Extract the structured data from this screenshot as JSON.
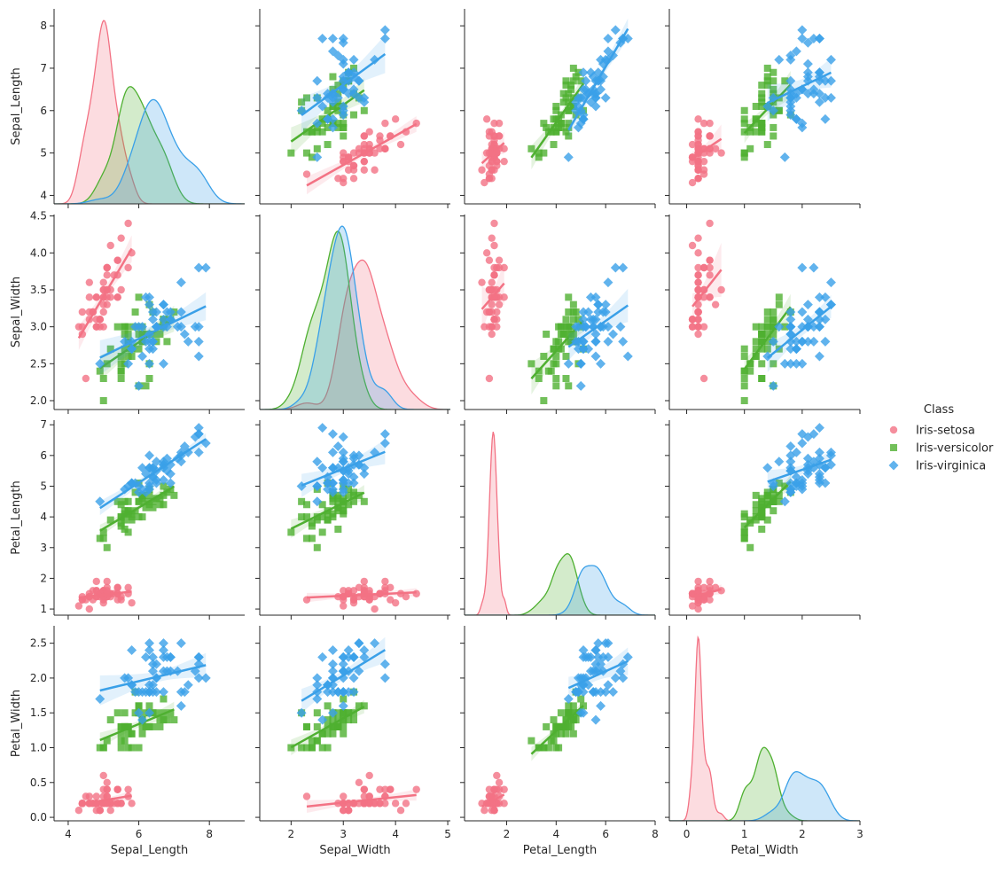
{
  "chart_data": {
    "type": "pairplot",
    "variables": [
      "Sepal_Length",
      "Sepal_Width",
      "Petal_Length",
      "Petal_Width"
    ],
    "axis_labels": {
      "x": [
        "Sepal_Length",
        "Sepal_Width",
        "Petal_Length",
        "Petal_Width"
      ],
      "y": [
        "Sepal_Length",
        "Sepal_Width",
        "Petal_Length",
        "Petal_Width"
      ]
    },
    "ranges": [
      [
        3.8,
        8.4
      ],
      [
        1.88,
        4.52
      ],
      [
        0.8,
        7.15
      ],
      [
        -0.05,
        2.75
      ]
    ],
    "x_ranges": [
      [
        3.6,
        9.0
      ],
      [
        1.4,
        5.05
      ],
      [
        0.3,
        8.0
      ],
      [
        -0.3,
        3.0
      ]
    ],
    "ticks": {
      "Sepal_Length_y": [
        4,
        5,
        6,
        7,
        8
      ],
      "Sepal_Width_y": [
        2.0,
        2.5,
        3.0,
        3.5,
        4.0,
        4.5
      ],
      "Petal_Length_y": [
        1,
        2,
        3,
        4,
        5,
        6,
        7
      ],
      "Petal_Width_y": [
        0.0,
        0.5,
        1.0,
        1.5,
        2.0,
        2.5
      ],
      "Sepal_Length_x": [
        4,
        6,
        8
      ],
      "Sepal_Width_x": [
        2,
        3,
        4,
        5
      ],
      "Petal_Length_x": [
        2,
        4,
        6,
        8
      ],
      "Petal_Width_x": [
        0,
        1,
        2,
        3
      ]
    },
    "tick_labels": {
      "Sepal_Length_y": [
        "4",
        "5",
        "6",
        "7",
        "8"
      ],
      "Sepal_Width_y": [
        "2.0",
        "2.5",
        "3.0",
        "3.5",
        "4.0",
        "4.5"
      ],
      "Petal_Length_y": [
        "1",
        "2",
        "3",
        "4",
        "5",
        "6",
        "7"
      ],
      "Petal_Width_y": [
        "0.0",
        "0.5",
        "1.0",
        "1.5",
        "2.0",
        "2.5"
      ],
      "Sepal_Length_x": [
        "4",
        "6",
        "8"
      ],
      "Sepal_Width_x": [
        "2",
        "3",
        "4",
        "5"
      ],
      "Petal_Length_x": [
        "2",
        "4",
        "6",
        "8"
      ],
      "Petal_Width_x": [
        "0",
        "1",
        "2",
        "3"
      ]
    },
    "legend": {
      "title": "Class",
      "position": "right",
      "entries": [
        {
          "label": "Iris-setosa",
          "color": "#f37284",
          "marker": "circle"
        },
        {
          "label": "Iris-versicolor",
          "color": "#4fb031",
          "marker": "square"
        },
        {
          "label": "Iris-virginica",
          "color": "#3aa0e8",
          "marker": "diamond"
        }
      ]
    },
    "series": [
      {
        "name": "Iris-setosa",
        "color": "#f37284",
        "marker": "circle",
        "points": [
          [
            5.1,
            3.5,
            1.4,
            0.2
          ],
          [
            4.9,
            3.0,
            1.4,
            0.2
          ],
          [
            4.7,
            3.2,
            1.3,
            0.2
          ],
          [
            4.6,
            3.1,
            1.5,
            0.2
          ],
          [
            5.0,
            3.6,
            1.4,
            0.2
          ],
          [
            5.4,
            3.9,
            1.7,
            0.4
          ],
          [
            4.6,
            3.4,
            1.4,
            0.3
          ],
          [
            5.0,
            3.4,
            1.5,
            0.2
          ],
          [
            4.4,
            2.9,
            1.4,
            0.2
          ],
          [
            4.9,
            3.1,
            1.5,
            0.1
          ],
          [
            5.4,
            3.7,
            1.5,
            0.2
          ],
          [
            4.8,
            3.4,
            1.6,
            0.2
          ],
          [
            4.8,
            3.0,
            1.4,
            0.1
          ],
          [
            4.3,
            3.0,
            1.1,
            0.1
          ],
          [
            5.8,
            4.0,
            1.2,
            0.2
          ],
          [
            5.7,
            4.4,
            1.5,
            0.4
          ],
          [
            5.4,
            3.9,
            1.3,
            0.4
          ],
          [
            5.1,
            3.5,
            1.4,
            0.3
          ],
          [
            5.7,
            3.8,
            1.7,
            0.3
          ],
          [
            5.1,
            3.8,
            1.5,
            0.3
          ],
          [
            5.4,
            3.4,
            1.7,
            0.2
          ],
          [
            5.1,
            3.7,
            1.5,
            0.4
          ],
          [
            4.6,
            3.6,
            1.0,
            0.2
          ],
          [
            5.1,
            3.3,
            1.7,
            0.5
          ],
          [
            4.8,
            3.4,
            1.9,
            0.2
          ],
          [
            5.0,
            3.0,
            1.6,
            0.2
          ],
          [
            5.0,
            3.4,
            1.6,
            0.4
          ],
          [
            5.2,
            3.5,
            1.5,
            0.2
          ],
          [
            5.2,
            3.4,
            1.4,
            0.2
          ],
          [
            4.7,
            3.2,
            1.6,
            0.2
          ],
          [
            4.8,
            3.1,
            1.6,
            0.2
          ],
          [
            5.4,
            3.4,
            1.5,
            0.4
          ],
          [
            5.2,
            4.1,
            1.5,
            0.1
          ],
          [
            5.5,
            4.2,
            1.4,
            0.2
          ],
          [
            4.9,
            3.1,
            1.5,
            0.1
          ],
          [
            5.0,
            3.2,
            1.2,
            0.2
          ],
          [
            5.5,
            3.5,
            1.3,
            0.2
          ],
          [
            4.9,
            3.1,
            1.5,
            0.1
          ],
          [
            4.4,
            3.0,
            1.3,
            0.2
          ],
          [
            5.1,
            3.4,
            1.5,
            0.2
          ],
          [
            5.0,
            3.5,
            1.3,
            0.3
          ],
          [
            4.5,
            2.3,
            1.3,
            0.3
          ],
          [
            4.4,
            3.2,
            1.3,
            0.2
          ],
          [
            5.0,
            3.5,
            1.6,
            0.6
          ],
          [
            5.1,
            3.8,
            1.9,
            0.4
          ],
          [
            4.8,
            3.0,
            1.4,
            0.3
          ],
          [
            5.1,
            3.8,
            1.6,
            0.2
          ],
          [
            4.6,
            3.2,
            1.4,
            0.2
          ],
          [
            5.3,
            3.7,
            1.5,
            0.2
          ],
          [
            5.0,
            3.3,
            1.4,
            0.2
          ]
        ]
      },
      {
        "name": "Iris-versicolor",
        "color": "#4fb031",
        "marker": "square",
        "points": [
          [
            7.0,
            3.2,
            4.7,
            1.4
          ],
          [
            6.4,
            3.2,
            4.5,
            1.5
          ],
          [
            6.9,
            3.1,
            4.9,
            1.5
          ],
          [
            5.5,
            2.3,
            4.0,
            1.3
          ],
          [
            6.5,
            2.8,
            4.6,
            1.5
          ],
          [
            5.7,
            2.8,
            4.5,
            1.3
          ],
          [
            6.3,
            3.3,
            4.7,
            1.6
          ],
          [
            4.9,
            2.4,
            3.3,
            1.0
          ],
          [
            6.6,
            2.9,
            4.6,
            1.3
          ],
          [
            5.2,
            2.7,
            3.9,
            1.4
          ],
          [
            5.0,
            2.0,
            3.5,
            1.0
          ],
          [
            5.9,
            3.0,
            4.2,
            1.5
          ],
          [
            6.0,
            2.2,
            4.0,
            1.0
          ],
          [
            6.1,
            2.9,
            4.7,
            1.4
          ],
          [
            5.6,
            2.9,
            3.6,
            1.3
          ],
          [
            6.7,
            3.1,
            4.4,
            1.4
          ],
          [
            5.6,
            3.0,
            4.5,
            1.5
          ],
          [
            5.8,
            2.7,
            4.1,
            1.0
          ],
          [
            6.2,
            2.2,
            4.5,
            1.5
          ],
          [
            5.6,
            2.5,
            3.9,
            1.1
          ],
          [
            5.9,
            3.2,
            4.8,
            1.8
          ],
          [
            6.1,
            2.8,
            4.0,
            1.3
          ],
          [
            6.3,
            2.5,
            4.9,
            1.5
          ],
          [
            6.1,
            2.8,
            4.7,
            1.2
          ],
          [
            6.4,
            2.9,
            4.3,
            1.3
          ],
          [
            6.6,
            3.0,
            4.4,
            1.4
          ],
          [
            6.8,
            2.8,
            4.8,
            1.4
          ],
          [
            6.7,
            3.0,
            5.0,
            1.7
          ],
          [
            6.0,
            2.9,
            4.5,
            1.5
          ],
          [
            5.7,
            2.6,
            3.5,
            1.0
          ],
          [
            5.5,
            2.4,
            3.8,
            1.1
          ],
          [
            5.5,
            2.4,
            3.7,
            1.0
          ],
          [
            5.8,
            2.7,
            3.9,
            1.2
          ],
          [
            6.0,
            2.7,
            5.1,
            1.6
          ],
          [
            5.4,
            3.0,
            4.5,
            1.5
          ],
          [
            6.0,
            3.4,
            4.5,
            1.6
          ],
          [
            6.7,
            3.1,
            4.7,
            1.5
          ],
          [
            6.3,
            2.3,
            4.4,
            1.3
          ],
          [
            5.6,
            3.0,
            4.1,
            1.3
          ],
          [
            5.5,
            2.5,
            4.0,
            1.3
          ],
          [
            5.5,
            2.6,
            4.4,
            1.2
          ],
          [
            6.1,
            3.0,
            4.6,
            1.4
          ],
          [
            5.8,
            2.6,
            4.0,
            1.2
          ],
          [
            5.0,
            2.3,
            3.3,
            1.0
          ],
          [
            5.6,
            2.7,
            4.2,
            1.3
          ],
          [
            5.7,
            3.0,
            4.2,
            1.2
          ],
          [
            5.7,
            2.9,
            4.2,
            1.3
          ],
          [
            6.2,
            2.9,
            4.3,
            1.3
          ],
          [
            5.1,
            2.5,
            3.0,
            1.1
          ],
          [
            5.7,
            2.8,
            4.1,
            1.3
          ]
        ]
      },
      {
        "name": "Iris-virginica",
        "color": "#3aa0e8",
        "marker": "diamond",
        "points": [
          [
            6.3,
            3.3,
            6.0,
            2.5
          ],
          [
            5.8,
            2.7,
            5.1,
            1.9
          ],
          [
            7.1,
            3.0,
            5.9,
            2.1
          ],
          [
            6.3,
            2.9,
            5.6,
            1.8
          ],
          [
            6.5,
            3.0,
            5.8,
            2.2
          ],
          [
            7.6,
            3.0,
            6.6,
            2.1
          ],
          [
            4.9,
            2.5,
            4.5,
            1.7
          ],
          [
            7.3,
            2.9,
            6.3,
            1.8
          ],
          [
            6.7,
            2.5,
            5.8,
            1.8
          ],
          [
            7.2,
            3.6,
            6.1,
            2.5
          ],
          [
            6.5,
            3.2,
            5.1,
            2.0
          ],
          [
            6.4,
            2.7,
            5.3,
            1.9
          ],
          [
            6.8,
            3.0,
            5.5,
            2.1
          ],
          [
            5.7,
            2.5,
            5.0,
            2.0
          ],
          [
            5.8,
            2.8,
            5.1,
            2.4
          ],
          [
            6.4,
            3.2,
            5.3,
            2.3
          ],
          [
            6.5,
            3.0,
            5.5,
            1.8
          ],
          [
            7.7,
            3.8,
            6.7,
            2.2
          ],
          [
            7.7,
            2.6,
            6.9,
            2.3
          ],
          [
            6.0,
            2.2,
            5.0,
            1.5
          ],
          [
            6.9,
            3.2,
            5.7,
            2.3
          ],
          [
            5.6,
            2.8,
            4.9,
            2.0
          ],
          [
            7.7,
            2.8,
            6.7,
            2.0
          ],
          [
            6.3,
            2.7,
            4.9,
            1.8
          ],
          [
            6.7,
            3.3,
            5.7,
            2.1
          ],
          [
            7.2,
            3.2,
            6.0,
            1.8
          ],
          [
            6.2,
            2.8,
            4.8,
            1.8
          ],
          [
            6.1,
            3.0,
            4.9,
            1.8
          ],
          [
            6.4,
            2.8,
            5.6,
            2.1
          ],
          [
            7.2,
            3.0,
            5.8,
            1.6
          ],
          [
            7.4,
            2.8,
            6.1,
            1.9
          ],
          [
            7.9,
            3.8,
            6.4,
            2.0
          ],
          [
            6.4,
            2.8,
            5.6,
            2.2
          ],
          [
            6.3,
            2.8,
            5.1,
            1.5
          ],
          [
            6.1,
            2.6,
            5.6,
            1.4
          ],
          [
            7.7,
            3.0,
            6.1,
            2.3
          ],
          [
            6.3,
            3.4,
            5.6,
            2.4
          ],
          [
            6.4,
            3.1,
            5.5,
            1.8
          ],
          [
            6.0,
            3.0,
            4.8,
            1.8
          ],
          [
            6.9,
            3.1,
            5.4,
            2.1
          ],
          [
            6.7,
            3.1,
            5.6,
            2.4
          ],
          [
            6.9,
            3.1,
            5.1,
            2.3
          ],
          [
            5.8,
            2.7,
            5.1,
            1.9
          ],
          [
            6.8,
            3.2,
            5.9,
            2.3
          ],
          [
            6.7,
            3.3,
            5.7,
            2.5
          ],
          [
            6.7,
            3.0,
            5.2,
            2.3
          ],
          [
            6.3,
            2.5,
            5.0,
            1.9
          ],
          [
            6.5,
            3.0,
            5.2,
            2.0
          ],
          [
            6.2,
            3.4,
            5.4,
            2.3
          ],
          [
            5.9,
            3.0,
            5.1,
            1.8
          ]
        ]
      }
    ]
  }
}
